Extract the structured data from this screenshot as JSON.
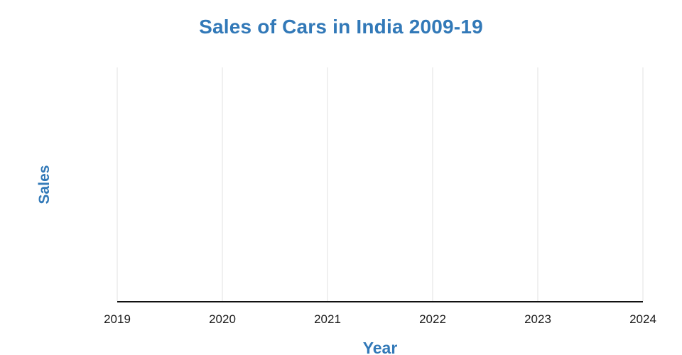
{
  "page": {
    "background": "#ffffff"
  },
  "chart": {
    "title": "Sales of Cars in India 2009-19",
    "xlabel": "Year",
    "ylabel": "Sales",
    "colors": {
      "title_color": "#3279b8",
      "axis_label_color": "#3279b8",
      "tick_label_color": "#1c1c1c",
      "gridline_color": "#e0e0e0",
      "axis_line_color": "#111111"
    }
  },
  "chart_data": {
    "type": "line",
    "title": "Sales of Cars in India 2009-19",
    "xlabel": "Year",
    "ylabel": "Sales",
    "x_tick_labels": [
      "2019",
      "2020",
      "2021",
      "2022",
      "2023",
      "2024"
    ],
    "xlim": [
      2019,
      2024
    ],
    "y_tick_labels": [],
    "series": [],
    "grid": "vertical-only",
    "legend": "none",
    "note": "plot area renders empty: vertical gridlines at each year tick, bottom axis spine only, no data points and no y-axis ticks"
  }
}
